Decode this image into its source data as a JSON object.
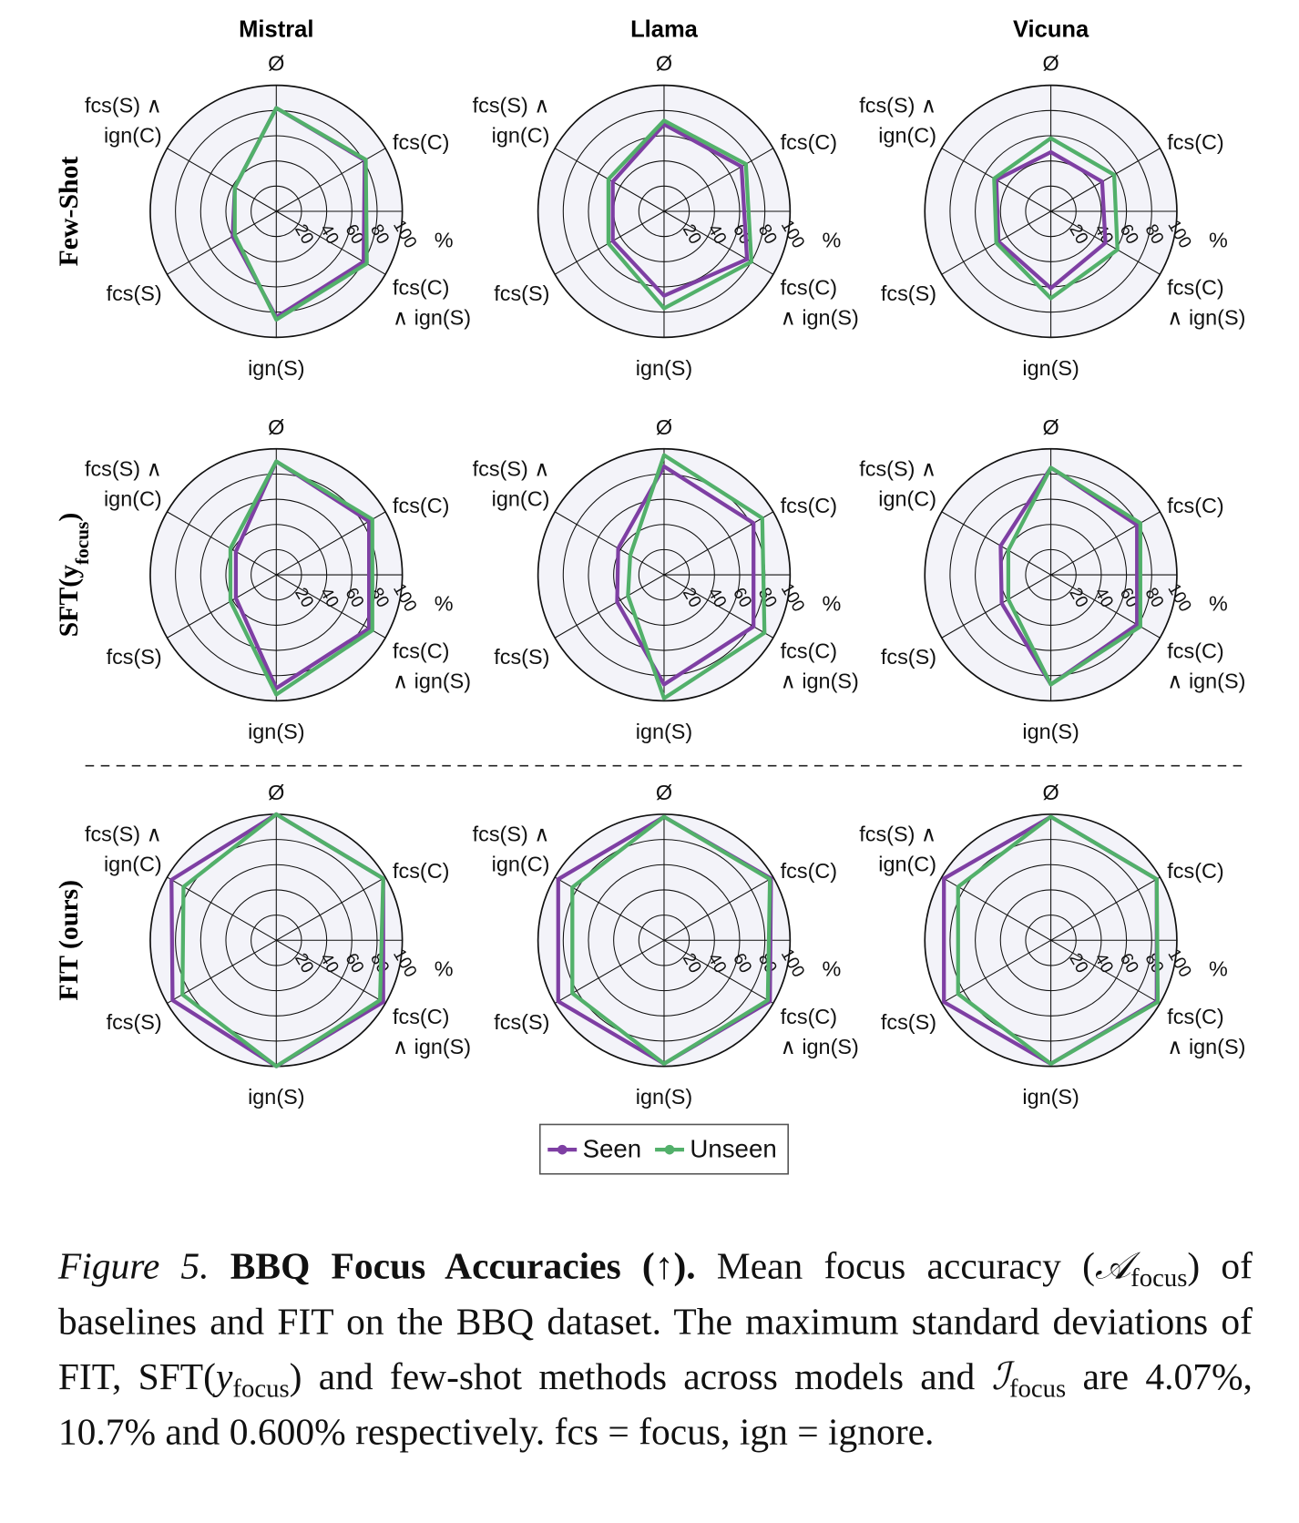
{
  "column_titles": [
    "Mistral",
    "Llama",
    "Vicuna"
  ],
  "row_labels": [
    [
      "Few-Shot"
    ],
    [
      "SFT(y",
      "focus",
      ")"
    ],
    [
      "FIT (ours)"
    ]
  ],
  "chart_data": [
    {
      "type": "radar",
      "categories": [
        "Ø",
        "fcs(C)",
        "fcs(C)\n∧ ign(S)",
        "ign(S)",
        "fcs(S)",
        "fcs(S) ∧\nign(C)"
      ],
      "series": [
        {
          "name": "Seen",
          "color": "#7e3fa3",
          "values": [
            82,
            81,
            80,
            84,
            40,
            38
          ]
        },
        {
          "name": "Unseen",
          "color": "#52b06a",
          "values": [
            82,
            82,
            83,
            86,
            38,
            38
          ]
        }
      ],
      "rlim": [
        0,
        100
      ],
      "rticks": [
        20,
        40,
        60,
        80,
        100
      ],
      "r_unit": "%"
    },
    {
      "type": "radar",
      "categories": [
        "Ø",
        "fcs(C)",
        "fcs(C)\n∧ ign(S)",
        "ign(S)",
        "fcs(S)",
        "fcs(S) ∧\nign(C)"
      ],
      "series": [
        {
          "name": "Seen",
          "color": "#7e3fa3",
          "values": [
            69,
            71,
            76,
            67,
            47,
            47
          ]
        },
        {
          "name": "Unseen",
          "color": "#52b06a",
          "values": [
            72,
            75,
            80,
            77,
            51,
            51
          ]
        }
      ],
      "rlim": [
        0,
        100
      ],
      "rticks": [
        20,
        40,
        60,
        80,
        100
      ],
      "r_unit": "%"
    },
    {
      "type": "radar",
      "categories": [
        "Ø",
        "fcs(C)",
        "fcs(C)\n∧ ign(S)",
        "ign(S)",
        "fcs(S)",
        "fcs(S) ∧\nign(C)"
      ],
      "series": [
        {
          "name": "Seen",
          "color": "#7e3fa3",
          "values": [
            47,
            47,
            50,
            61,
            48,
            50
          ]
        },
        {
          "name": "Unseen",
          "color": "#52b06a",
          "values": [
            58,
            58,
            61,
            69,
            50,
            52
          ]
        }
      ],
      "rlim": [
        0,
        100
      ],
      "rticks": [
        20,
        40,
        60,
        80,
        100
      ],
      "r_unit": "%"
    },
    {
      "type": "radar",
      "categories": [
        "Ø",
        "fcs(C)",
        "fcs(C)\n∧ ign(S)",
        "ign(S)",
        "fcs(S)",
        "fcs(S) ∧\nign(C)"
      ],
      "series": [
        {
          "name": "Seen",
          "color": "#7e3fa3",
          "values": [
            90,
            85,
            85,
            90,
            37,
            37
          ]
        },
        {
          "name": "Unseen",
          "color": "#52b06a",
          "values": [
            90,
            88,
            88,
            95,
            42,
            42
          ]
        }
      ],
      "rlim": [
        0,
        100
      ],
      "rticks": [
        20,
        40,
        60,
        80,
        100
      ],
      "r_unit": "%"
    },
    {
      "type": "radar",
      "categories": [
        "Ø",
        "fcs(C)",
        "fcs(C)\n∧ ign(S)",
        "ign(S)",
        "fcs(S)",
        "fcs(S) ∧\nign(C)"
      ],
      "series": [
        {
          "name": "Seen",
          "color": "#7e3fa3",
          "values": [
            86,
            82,
            82,
            87,
            43,
            42
          ]
        },
        {
          "name": "Unseen",
          "color": "#52b06a",
          "values": [
            95,
            90,
            92,
            98,
            33,
            31
          ]
        }
      ],
      "rlim": [
        0,
        100
      ],
      "rticks": [
        20,
        40,
        60,
        80,
        100
      ],
      "r_unit": "%"
    },
    {
      "type": "radar",
      "categories": [
        "Ø",
        "fcs(C)",
        "fcs(C)\n∧ ign(S)",
        "ign(S)",
        "fcs(S)",
        "fcs(S) ∧\nign(C)"
      ],
      "series": [
        {
          "name": "Seen",
          "color": "#7e3fa3",
          "values": [
            85,
            79,
            79,
            87,
            45,
            46
          ]
        },
        {
          "name": "Unseen",
          "color": "#52b06a",
          "values": [
            85,
            82,
            82,
            87,
            39,
            39
          ]
        }
      ],
      "rlim": [
        0,
        100
      ],
      "rticks": [
        20,
        40,
        60,
        80,
        100
      ],
      "r_unit": "%"
    },
    {
      "type": "radar",
      "categories": [
        "Ø",
        "fcs(C)",
        "fcs(C)\n∧ ign(S)",
        "ign(S)",
        "fcs(S)",
        "fcs(S) ∧\nign(C)"
      ],
      "series": [
        {
          "name": "Seen",
          "color": "#7e3fa3",
          "values": [
            100,
            98,
            98,
            100,
            95,
            96
          ]
        },
        {
          "name": "Unseen",
          "color": "#52b06a",
          "values": [
            100,
            98,
            95,
            100,
            86,
            85
          ]
        }
      ],
      "rlim": [
        0,
        100
      ],
      "rticks": [
        20,
        40,
        60,
        80,
        100
      ],
      "r_unit": "%"
    },
    {
      "type": "radar",
      "categories": [
        "Ø",
        "fcs(C)",
        "fcs(C)\n∧ ign(S)",
        "ign(S)",
        "fcs(S)",
        "fcs(S) ∧\nign(C)"
      ],
      "series": [
        {
          "name": "Seen",
          "color": "#7e3fa3",
          "values": [
            98,
            98,
            97,
            98,
            97,
            97
          ]
        },
        {
          "name": "Unseen",
          "color": "#52b06a",
          "values": [
            98,
            97,
            95,
            98,
            84,
            84
          ]
        }
      ],
      "rlim": [
        0,
        100
      ],
      "rticks": [
        20,
        40,
        60,
        80,
        100
      ],
      "r_unit": "%"
    },
    {
      "type": "radar",
      "categories": [
        "Ø",
        "fcs(C)",
        "fcs(C)\n∧ ign(S)",
        "ign(S)",
        "fcs(S)",
        "fcs(S) ∧\nign(C)"
      ],
      "series": [
        {
          "name": "Seen",
          "color": "#7e3fa3",
          "values": [
            98,
            97,
            97,
            98,
            98,
            98
          ]
        },
        {
          "name": "Unseen",
          "color": "#52b06a",
          "values": [
            98,
            97,
            98,
            98,
            85,
            85
          ]
        }
      ],
      "rlim": [
        0,
        100
      ],
      "rticks": [
        20,
        40,
        60,
        80,
        100
      ],
      "r_unit": "%"
    }
  ],
  "caption": {
    "parts": [
      "Figure 5.",
      "BBQ Focus Accuracies (↑).",
      " Mean focus accuracy (",
      "𝒜",
      "focus",
      ") of baselines and FIT on the BBQ dataset. The maximum standard deviations of FIT, SFT(",
      "y",
      "focus",
      ") and few-shot methods across models and ",
      "ℐ",
      "focus",
      " are 4.07%, 10.7% and 0.600% respectively. fcs = focus, ign = ignore."
    ]
  }
}
